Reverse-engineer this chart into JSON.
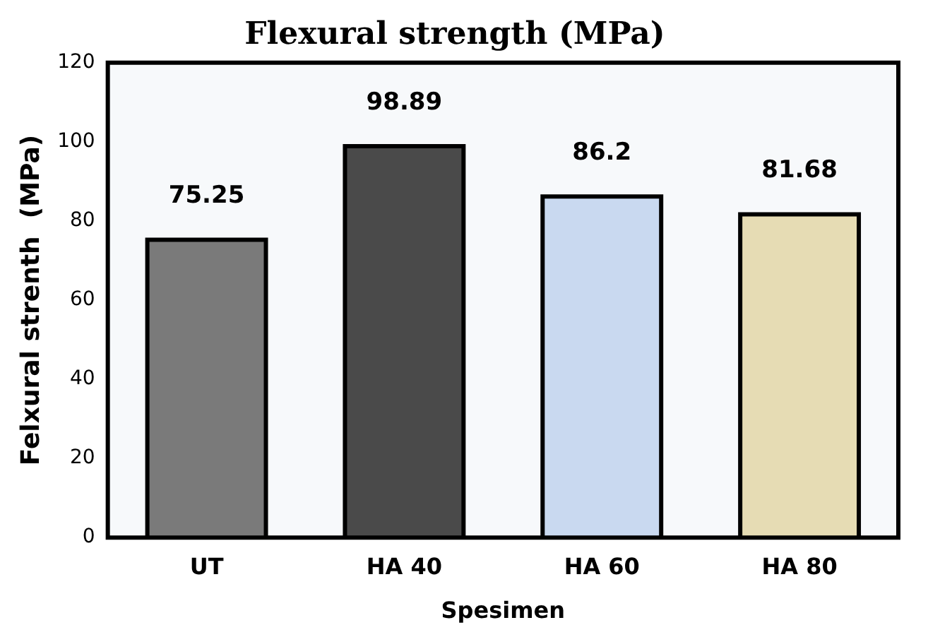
{
  "chart_data": {
    "type": "bar",
    "title": "Flexural strength (MPa)",
    "xlabel": "Spesimen",
    "ylabel": "Felxural strenth  (MPa)",
    "categories": [
      "UT",
      "HA 40",
      "HA 60",
      "HA 80"
    ],
    "values": [
      75.25,
      98.89,
      86.2,
      81.68
    ],
    "colors": [
      "#7a7a7a",
      "#4a4a4a",
      "#c9d9f0",
      "#e6dcb4"
    ],
    "ylim": [
      0,
      120
    ],
    "yticks": [
      0,
      20,
      40,
      60,
      80,
      100,
      120
    ],
    "grid": false,
    "legend": false,
    "data_labels": true
  }
}
